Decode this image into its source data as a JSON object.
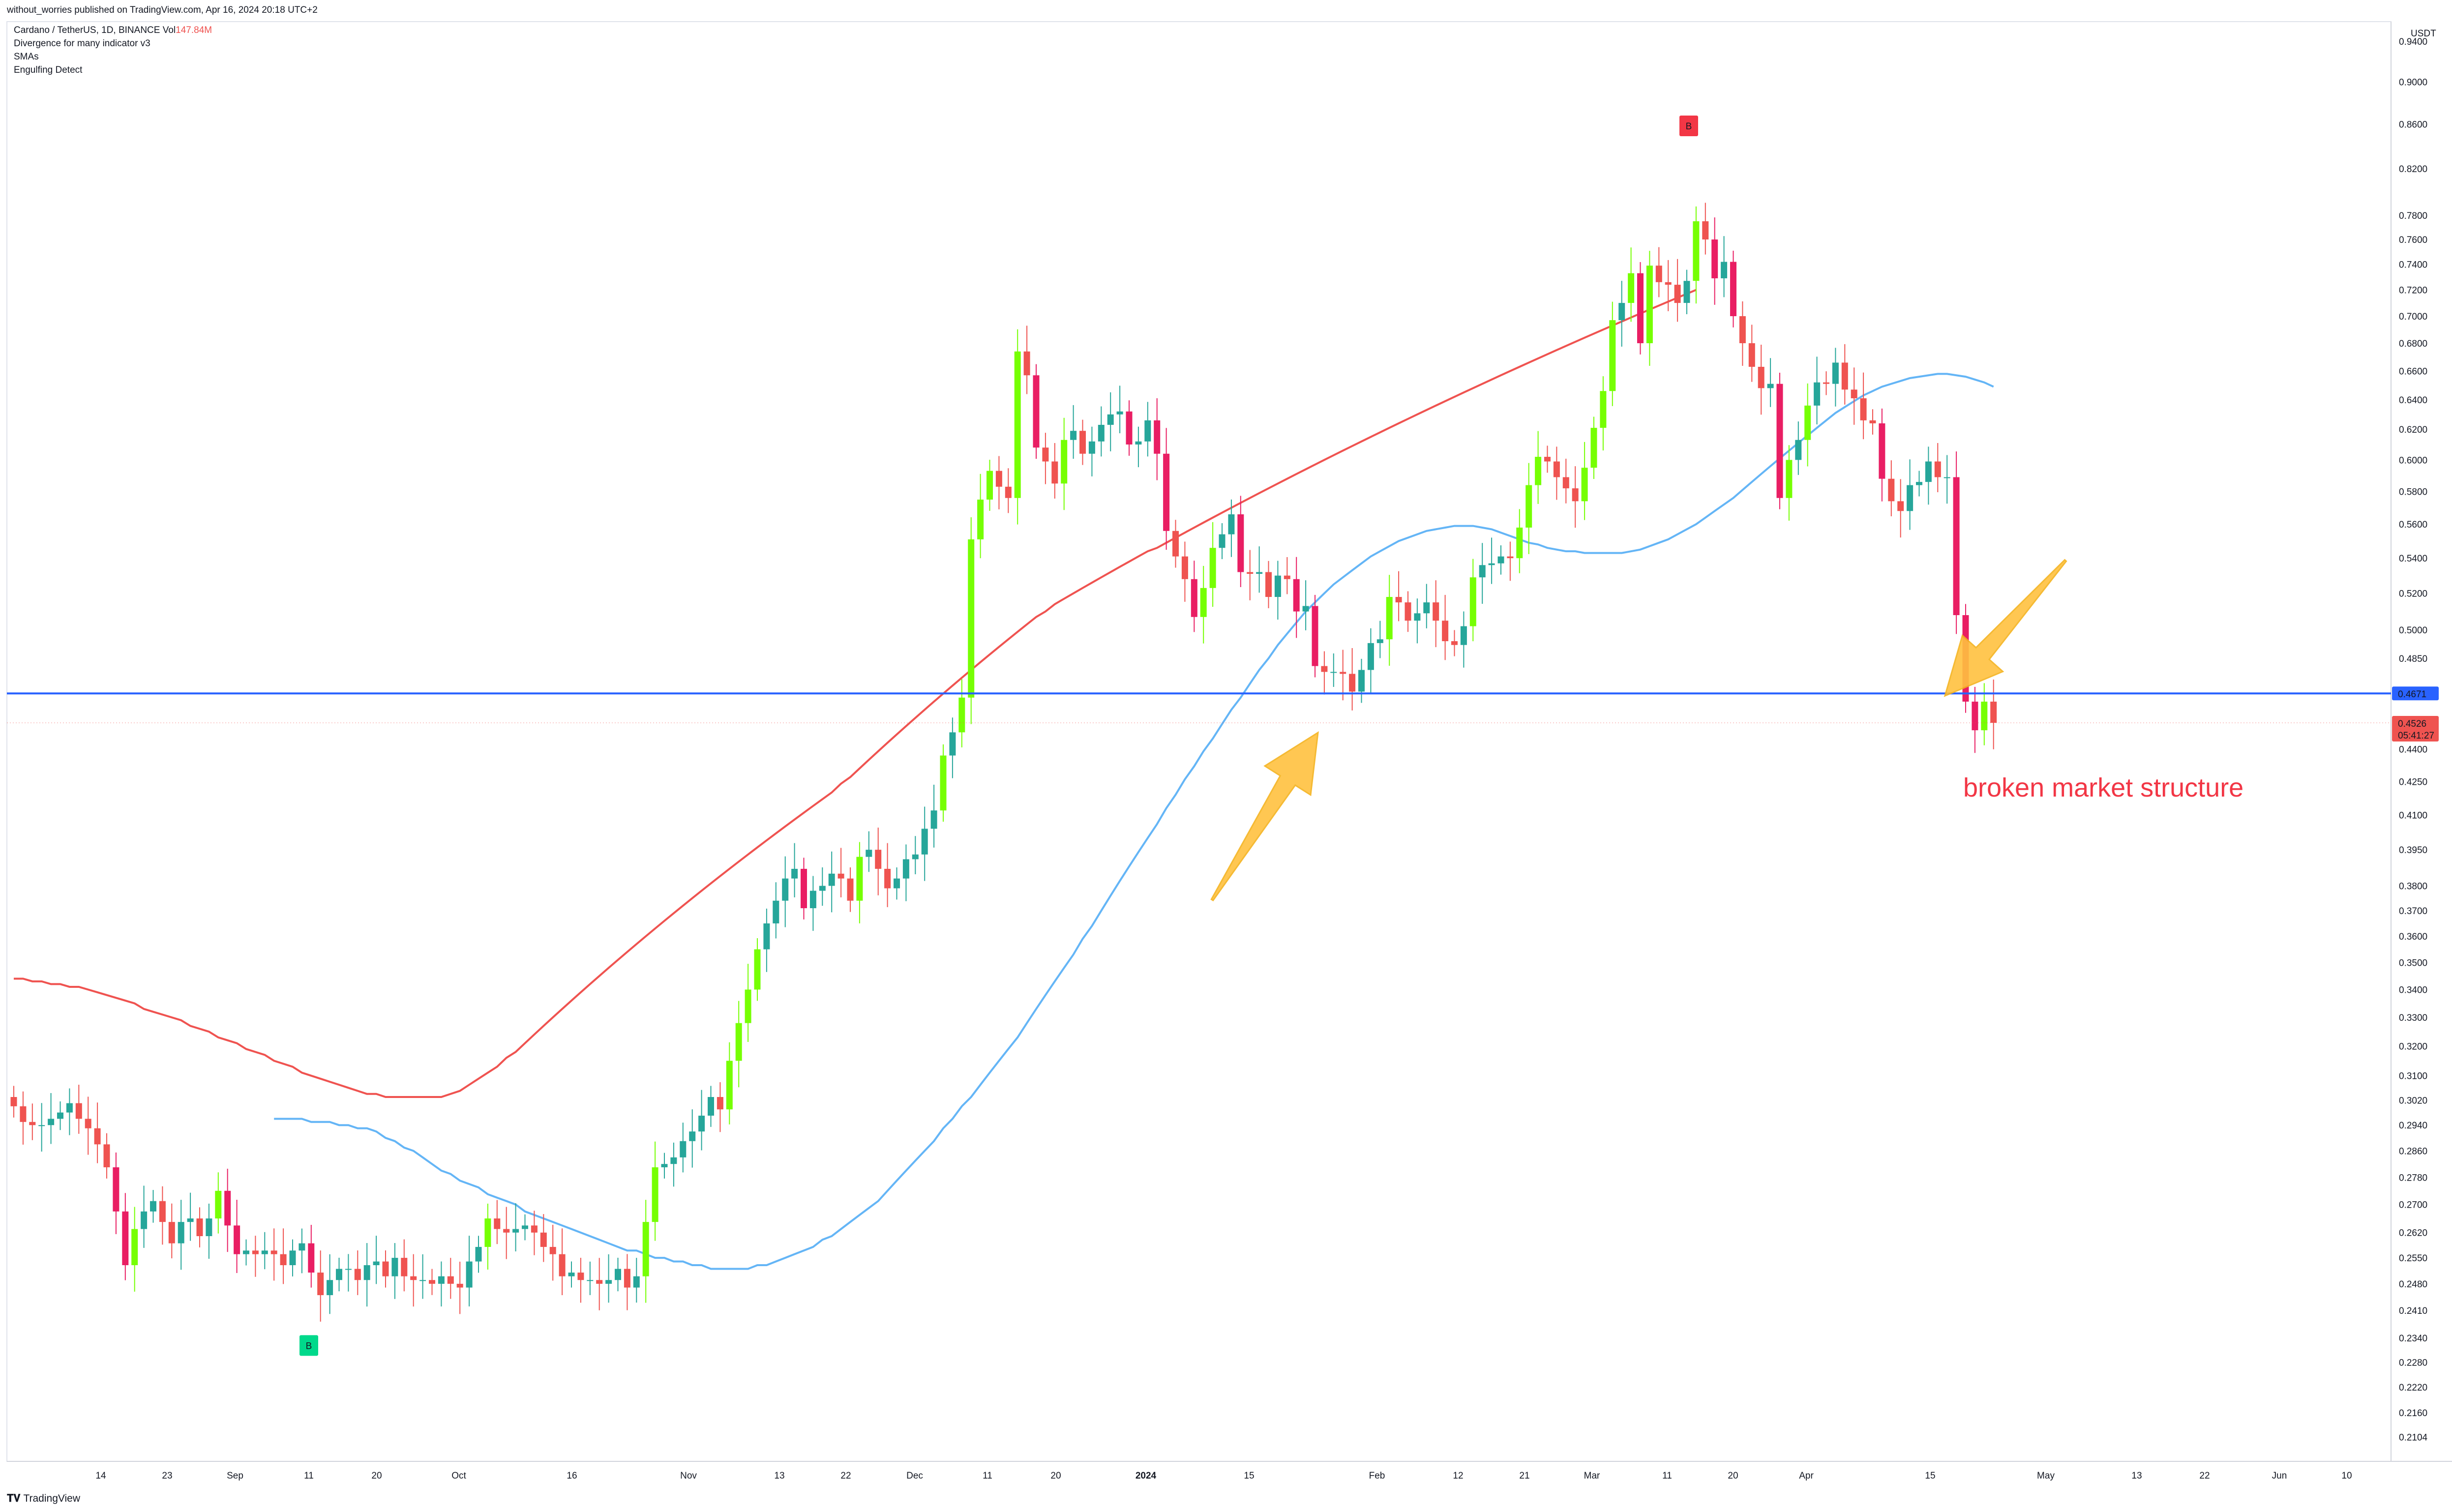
{
  "header": {
    "caption": "without_worries published on TradingView.com, Apr 16, 2024 20:18 UTC+2"
  },
  "legend": {
    "symbol": "Cardano / TetherUS, 1D, BINANCE",
    "vol_label": "Vol",
    "vol_value": "147.84M",
    "indicators": [
      "Divergence for many indicator v3",
      "SMAs",
      "Engulfing Detect"
    ]
  },
  "footer": {
    "brand": "TradingView",
    "icon": "tradingview-logo-icon"
  },
  "colors": {
    "up": "#26a69a",
    "up_strong": "#76ff03",
    "down": "#ef5350",
    "down_strong": "#e91e63",
    "sma_fast": "#64b5f6",
    "sma_slow": "#ef5350",
    "hline": "#2962ff",
    "arrow": "#ffc240",
    "annotation": "#f23645"
  },
  "chart_data": {
    "type": "candlestick",
    "title": "Cardano / TetherUS, 1D, BINANCE",
    "yscale": "log",
    "currency": "USDT",
    "ylim": [
      0.205,
      0.96
    ],
    "x_ticks": [
      "14",
      "23",
      "Sep",
      "11",
      "20",
      "Oct",
      "16",
      "Nov",
      "13",
      "22",
      "Dec",
      "11",
      "20",
      "2024",
      "15",
      "Feb",
      "12",
      "21",
      "Mar",
      "11",
      "20",
      "Apr",
      "15",
      "May",
      "13",
      "22",
      "Jun",
      "10"
    ],
    "y_ticks": [
      "0.9400",
      "0.9000",
      "0.8600",
      "0.8200",
      "0.7800",
      "0.7600",
      "0.7400",
      "0.7200",
      "0.7000",
      "0.6800",
      "0.6600",
      "0.6400",
      "0.6200",
      "0.6000",
      "0.5800",
      "0.5600",
      "0.5400",
      "0.5200",
      "0.5000",
      "0.4850",
      "0.4400",
      "0.4250",
      "0.4100",
      "0.3950",
      "0.3800",
      "0.3700",
      "0.3600",
      "0.3500",
      "0.3400",
      "0.3300",
      "0.3200",
      "0.3100",
      "0.3020",
      "0.2940",
      "0.2860",
      "0.2780",
      "0.2700",
      "0.2620",
      "0.2550",
      "0.2480",
      "0.2410",
      "0.2340",
      "0.2280",
      "0.2220",
      "0.2160",
      "0.2104"
    ],
    "horizontal_line": {
      "value": 0.4671,
      "label": "0.4671"
    },
    "last_price": {
      "value": 0.4526,
      "label": "0.4526",
      "countdown": "05:41:27"
    },
    "partial_label": "0.4526",
    "closes": [
      0.3,
      0.295,
      0.294,
      0.294,
      0.296,
      0.298,
      0.301,
      0.296,
      0.293,
      0.288,
      0.281,
      0.268,
      0.253,
      0.263,
      0.268,
      0.271,
      0.265,
      0.259,
      0.265,
      0.266,
      0.261,
      0.266,
      0.274,
      0.264,
      0.256,
      0.257,
      0.256,
      0.257,
      0.256,
      0.253,
      0.257,
      0.259,
      0.251,
      0.245,
      0.249,
      0.252,
      0.252,
      0.249,
      0.253,
      0.254,
      0.25,
      0.255,
      0.25,
      0.249,
      0.249,
      0.248,
      0.25,
      0.248,
      0.247,
      0.254,
      0.258,
      0.266,
      0.263,
      0.262,
      0.263,
      0.264,
      0.262,
      0.258,
      0.256,
      0.25,
      0.251,
      0.249,
      0.249,
      0.248,
      0.249,
      0.252,
      0.247,
      0.25,
      0.265,
      0.281,
      0.282,
      0.284,
      0.289,
      0.292,
      0.297,
      0.303,
      0.299,
      0.315,
      0.328,
      0.34,
      0.355,
      0.365,
      0.374,
      0.383,
      0.387,
      0.371,
      0.378,
      0.38,
      0.385,
      0.383,
      0.374,
      0.392,
      0.395,
      0.387,
      0.379,
      0.383,
      0.391,
      0.393,
      0.404,
      0.412,
      0.437,
      0.448,
      0.465,
      0.551,
      0.575,
      0.593,
      0.583,
      0.576,
      0.674,
      0.657,
      0.608,
      0.599,
      0.585,
      0.613,
      0.619,
      0.604,
      0.612,
      0.623,
      0.63,
      0.632,
      0.61,
      0.612,
      0.626,
      0.604,
      0.556,
      0.541,
      0.528,
      0.507,
      0.523,
      0.546,
      0.554,
      0.566,
      0.532,
      0.531,
      0.532,
      0.518,
      0.53,
      0.528,
      0.51,
      0.513,
      0.481,
      0.478,
      0.478,
      0.477,
      0.468,
      0.479,
      0.493,
      0.495,
      0.518,
      0.515,
      0.505,
      0.509,
      0.515,
      0.505,
      0.494,
      0.492,
      0.502,
      0.529,
      0.536,
      0.537,
      0.541,
      0.54,
      0.558,
      0.584,
      0.602,
      0.599,
      0.589,
      0.582,
      0.574,
      0.595,
      0.621,
      0.646,
      0.697,
      0.71,
      0.733,
      0.68,
      0.739,
      0.726,
      0.724,
      0.71,
      0.727,
      0.775,
      0.76,
      0.729,
      0.742,
      0.7,
      0.68,
      0.663,
      0.648,
      0.651,
      0.576,
      0.6,
      0.613,
      0.636,
      0.652,
      0.651,
      0.666,
      0.647,
      0.641,
      0.626,
      0.624,
      0.588,
      0.574,
      0.568,
      0.584,
      0.586,
      0.599,
      0.589,
      0.589,
      0.508,
      0.463,
      0.449,
      0.463,
      0.4526
    ],
    "sma_50": [
      0.296,
      0.296,
      0.296,
      0.296,
      0.295,
      0.295,
      0.295,
      0.294,
      0.294,
      0.293,
      0.293,
      0.292,
      0.29,
      0.289,
      0.287,
      0.286,
      0.284,
      0.282,
      0.28,
      0.279,
      0.277,
      0.276,
      0.275,
      0.273,
      0.272,
      0.271,
      0.27,
      0.268,
      0.267,
      0.266,
      0.265,
      0.264,
      0.263,
      0.262,
      0.261,
      0.26,
      0.259,
      0.258,
      0.257,
      0.257,
      0.256,
      0.255,
      0.255,
      0.254,
      0.254,
      0.253,
      0.253,
      0.252,
      0.252,
      0.252,
      0.252,
      0.252,
      0.253,
      0.253,
      0.254,
      0.255,
      0.256,
      0.257,
      0.258,
      0.26,
      0.261,
      0.263,
      0.265,
      0.267,
      0.269,
      0.271,
      0.274,
      0.277,
      0.28,
      0.283,
      0.286,
      0.289,
      0.293,
      0.296,
      0.3,
      0.303,
      0.307,
      0.311,
      0.315,
      0.319,
      0.323,
      0.328,
      0.333,
      0.338,
      0.343,
      0.348,
      0.353,
      0.359,
      0.364,
      0.37,
      0.376,
      0.382,
      0.388,
      0.394,
      0.4,
      0.406,
      0.413,
      0.419,
      0.426,
      0.432,
      0.439,
      0.445,
      0.452,
      0.459,
      0.465,
      0.472,
      0.479,
      0.485,
      0.492,
      0.498,
      0.504,
      0.51,
      0.515,
      0.52,
      0.525,
      0.529,
      0.533,
      0.537,
      0.541,
      0.544,
      0.547,
      0.55,
      0.552,
      0.554,
      0.556,
      0.557,
      0.558,
      0.559,
      0.559,
      0.559,
      0.558,
      0.557,
      0.555,
      0.553,
      0.551,
      0.549,
      0.548,
      0.546,
      0.545,
      0.544,
      0.544,
      0.543,
      0.543,
      0.543,
      0.543,
      0.543,
      0.544,
      0.545,
      0.547,
      0.549,
      0.551,
      0.554,
      0.557,
      0.56,
      0.564,
      0.568,
      0.572,
      0.576,
      0.581,
      0.586,
      0.591,
      0.596,
      0.601,
      0.606,
      0.611,
      0.616,
      0.621,
      0.626,
      0.631,
      0.635,
      0.639,
      0.643,
      0.646,
      0.649,
      0.651,
      0.653,
      0.655,
      0.656,
      0.657,
      0.658,
      0.658,
      0.657,
      0.656,
      0.654,
      0.652,
      0.649
    ],
    "sma_200": [
      0.344,
      0.344,
      0.343,
      0.343,
      0.342,
      0.342,
      0.341,
      0.341,
      0.34,
      0.339,
      0.338,
      0.337,
      0.336,
      0.335,
      0.333,
      0.332,
      0.331,
      0.33,
      0.329,
      0.327,
      0.326,
      0.325,
      0.323,
      0.322,
      0.321,
      0.319,
      0.318,
      0.317,
      0.315,
      0.314,
      0.313,
      0.311,
      0.31,
      0.309,
      0.308,
      0.307,
      0.306,
      0.305,
      0.304,
      0.304,
      0.303,
      0.303,
      0.303,
      0.303,
      0.303,
      0.303,
      0.303,
      0.304,
      0.305,
      0.307,
      0.309,
      0.311,
      0.313,
      0.316,
      0.318,
      0.321,
      0.324,
      0.327,
      0.33,
      0.333,
      0.336,
      0.339,
      0.342,
      0.345,
      0.348,
      0.351,
      0.354,
      0.357,
      0.36,
      0.363,
      0.366,
      0.369,
      0.372,
      0.375,
      0.378,
      0.381,
      0.384,
      0.387,
      0.39,
      0.393,
      0.396,
      0.399,
      0.402,
      0.405,
      0.408,
      0.411,
      0.414,
      0.417,
      0.42,
      0.424,
      0.427,
      0.431,
      0.435,
      0.439,
      0.443,
      0.447,
      0.451,
      0.455,
      0.459,
      0.463,
      0.467,
      0.471,
      0.475,
      0.479,
      0.483,
      0.487,
      0.491,
      0.495,
      0.499,
      0.503,
      0.507,
      0.51,
      0.514,
      0.517,
      0.52,
      0.523,
      0.526,
      0.529,
      0.532,
      0.535,
      0.538,
      0.541,
      0.544,
      0.546,
      0.549,
      0.552,
      0.555,
      0.558,
      0.561,
      0.564,
      0.567,
      0.57,
      0.573,
      0.576,
      0.579,
      0.582,
      0.585,
      0.588,
      0.591,
      0.594,
      0.597,
      0.6,
      0.603,
      0.606,
      0.609,
      0.612,
      0.615,
      0.618,
      0.621,
      0.624,
      0.627,
      0.63,
      0.633,
      0.636,
      0.639,
      0.642,
      0.645,
      0.648,
      0.651,
      0.654,
      0.657,
      0.66,
      0.663,
      0.666,
      0.669,
      0.672,
      0.675,
      0.678,
      0.681,
      0.684,
      0.687,
      0.69,
      0.693,
      0.696,
      0.699,
      0.702,
      0.705,
      0.708,
      0.711,
      0.714,
      0.717,
      0.72
    ],
    "markers": [
      {
        "text": "B",
        "value": 0.232,
        "position": "below"
      },
      {
        "text": "B",
        "value": 0.858,
        "position": "above"
      }
    ],
    "annotations": [
      {
        "text": "broken market structure"
      }
    ]
  }
}
